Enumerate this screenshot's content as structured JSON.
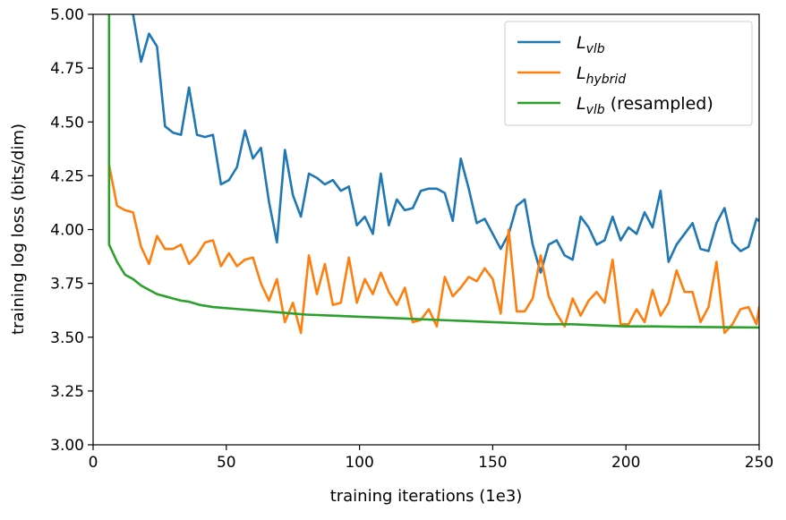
{
  "chart_data": {
    "type": "line",
    "title": "",
    "xlabel": "training iterations (1e3)",
    "ylabel": "training log loss (bits/dim)",
    "xlim": [
      0,
      250
    ],
    "ylim": [
      3.0,
      5.0
    ],
    "xticks": [
      0,
      50,
      100,
      150,
      200,
      250
    ],
    "xtick_labels": [
      "0",
      "50",
      "100",
      "150",
      "200",
      "250"
    ],
    "yticks": [
      3.0,
      3.25,
      3.5,
      3.75,
      4.0,
      4.25,
      4.5,
      4.75,
      5.0
    ],
    "ytick_labels": [
      "3.00",
      "3.25",
      "3.50",
      "3.75",
      "4.00",
      "4.25",
      "4.50",
      "4.75",
      "5.00"
    ],
    "grid": false,
    "legend_position": "top-right",
    "series": [
      {
        "name": "L_vlb",
        "legend_main": "L",
        "legend_sub": "vlb",
        "legend_suffix": "",
        "color": "#1f77b4",
        "x": [
          15,
          18,
          21,
          24,
          27,
          30,
          33,
          36,
          39,
          42,
          45,
          48,
          51,
          54,
          57,
          60,
          63,
          66,
          69,
          72,
          75,
          78,
          81,
          84,
          87,
          90,
          93,
          96,
          99,
          102,
          105,
          108,
          111,
          114,
          117,
          120,
          123,
          126,
          129,
          132,
          135,
          138,
          141,
          144,
          147,
          150,
          153,
          156,
          159,
          162,
          165,
          168,
          171,
          174,
          177,
          180,
          183,
          186,
          189,
          192,
          195,
          198,
          201,
          204,
          207,
          210,
          213,
          216,
          219,
          222,
          225,
          228,
          231,
          234,
          237,
          240,
          243,
          246,
          249,
          250
        ],
        "y": [
          5.0,
          4.78,
          4.91,
          4.85,
          4.48,
          4.45,
          4.44,
          4.66,
          4.44,
          4.43,
          4.44,
          4.21,
          4.23,
          4.29,
          4.46,
          4.33,
          4.38,
          4.13,
          3.94,
          4.37,
          4.16,
          4.06,
          4.26,
          4.24,
          4.21,
          4.23,
          4.18,
          4.2,
          4.02,
          4.06,
          3.98,
          4.26,
          4.02,
          4.14,
          4.09,
          4.1,
          4.18,
          4.19,
          4.19,
          4.17,
          4.04,
          4.33,
          4.19,
          4.03,
          4.05,
          3.98,
          3.91,
          3.98,
          4.11,
          4.14,
          3.93,
          3.8,
          3.93,
          3.95,
          3.88,
          3.86,
          4.06,
          4.01,
          3.93,
          3.95,
          4.06,
          3.95,
          4.01,
          3.98,
          4.08,
          4.01,
          4.18,
          3.85,
          3.93,
          3.98,
          4.03,
          3.91,
          3.9,
          4.03,
          4.1,
          3.94,
          3.9,
          3.92,
          4.05,
          4.04
        ]
      },
      {
        "name": "L_hybrid",
        "legend_main": "L",
        "legend_sub": "hybrid",
        "legend_suffix": "",
        "color": "#ff7f0e",
        "x": [
          6,
          9,
          12,
          15,
          18,
          21,
          24,
          27,
          30,
          33,
          36,
          39,
          42,
          45,
          48,
          51,
          54,
          57,
          60,
          63,
          66,
          69,
          72,
          75,
          78,
          81,
          84,
          87,
          90,
          93,
          96,
          99,
          102,
          105,
          108,
          111,
          114,
          117,
          120,
          123,
          126,
          129,
          132,
          135,
          138,
          141,
          144,
          147,
          150,
          153,
          156,
          159,
          162,
          165,
          168,
          171,
          174,
          177,
          180,
          183,
          186,
          189,
          192,
          195,
          198,
          201,
          204,
          207,
          210,
          213,
          216,
          219,
          222,
          225,
          228,
          231,
          234,
          237,
          240,
          243,
          246,
          249,
          250
        ],
        "y": [
          4.3,
          4.11,
          4.09,
          4.08,
          3.92,
          3.84,
          3.97,
          3.91,
          3.91,
          3.93,
          3.84,
          3.88,
          3.94,
          3.95,
          3.83,
          3.89,
          3.83,
          3.86,
          3.87,
          3.75,
          3.67,
          3.77,
          3.57,
          3.66,
          3.52,
          3.88,
          3.7,
          3.84,
          3.65,
          3.66,
          3.87,
          3.66,
          3.77,
          3.7,
          3.8,
          3.71,
          3.65,
          3.73,
          3.57,
          3.58,
          3.63,
          3.55,
          3.78,
          3.69,
          3.73,
          3.78,
          3.76,
          3.82,
          3.77,
          3.61,
          4.0,
          3.62,
          3.62,
          3.68,
          3.88,
          3.69,
          3.61,
          3.55,
          3.68,
          3.6,
          3.67,
          3.71,
          3.66,
          3.86,
          3.56,
          3.56,
          3.63,
          3.57,
          3.72,
          3.6,
          3.66,
          3.81,
          3.71,
          3.71,
          3.57,
          3.64,
          3.85,
          3.52,
          3.56,
          3.63,
          3.64,
          3.56,
          3.64
        ]
      },
      {
        "name": "L_vlb (resampled)",
        "legend_main": "L",
        "legend_sub": "vlb",
        "legend_suffix": " (resampled)",
        "color": "#2ca02c",
        "x": [
          6,
          6,
          9,
          12,
          15,
          18,
          21,
          24,
          27,
          30,
          33,
          36,
          40,
          45,
          50,
          55,
          60,
          65,
          70,
          75,
          80,
          90,
          100,
          110,
          120,
          130,
          140,
          150,
          160,
          170,
          180,
          190,
          200,
          210,
          220,
          230,
          240,
          250
        ],
        "y": [
          5.0,
          3.93,
          3.85,
          3.79,
          3.77,
          3.74,
          3.72,
          3.7,
          3.69,
          3.68,
          3.67,
          3.665,
          3.65,
          3.64,
          3.635,
          3.63,
          3.625,
          3.62,
          3.615,
          3.61,
          3.605,
          3.6,
          3.595,
          3.59,
          3.585,
          3.58,
          3.575,
          3.57,
          3.565,
          3.56,
          3.56,
          3.555,
          3.55,
          3.55,
          3.548,
          3.547,
          3.546,
          3.545
        ]
      }
    ]
  }
}
